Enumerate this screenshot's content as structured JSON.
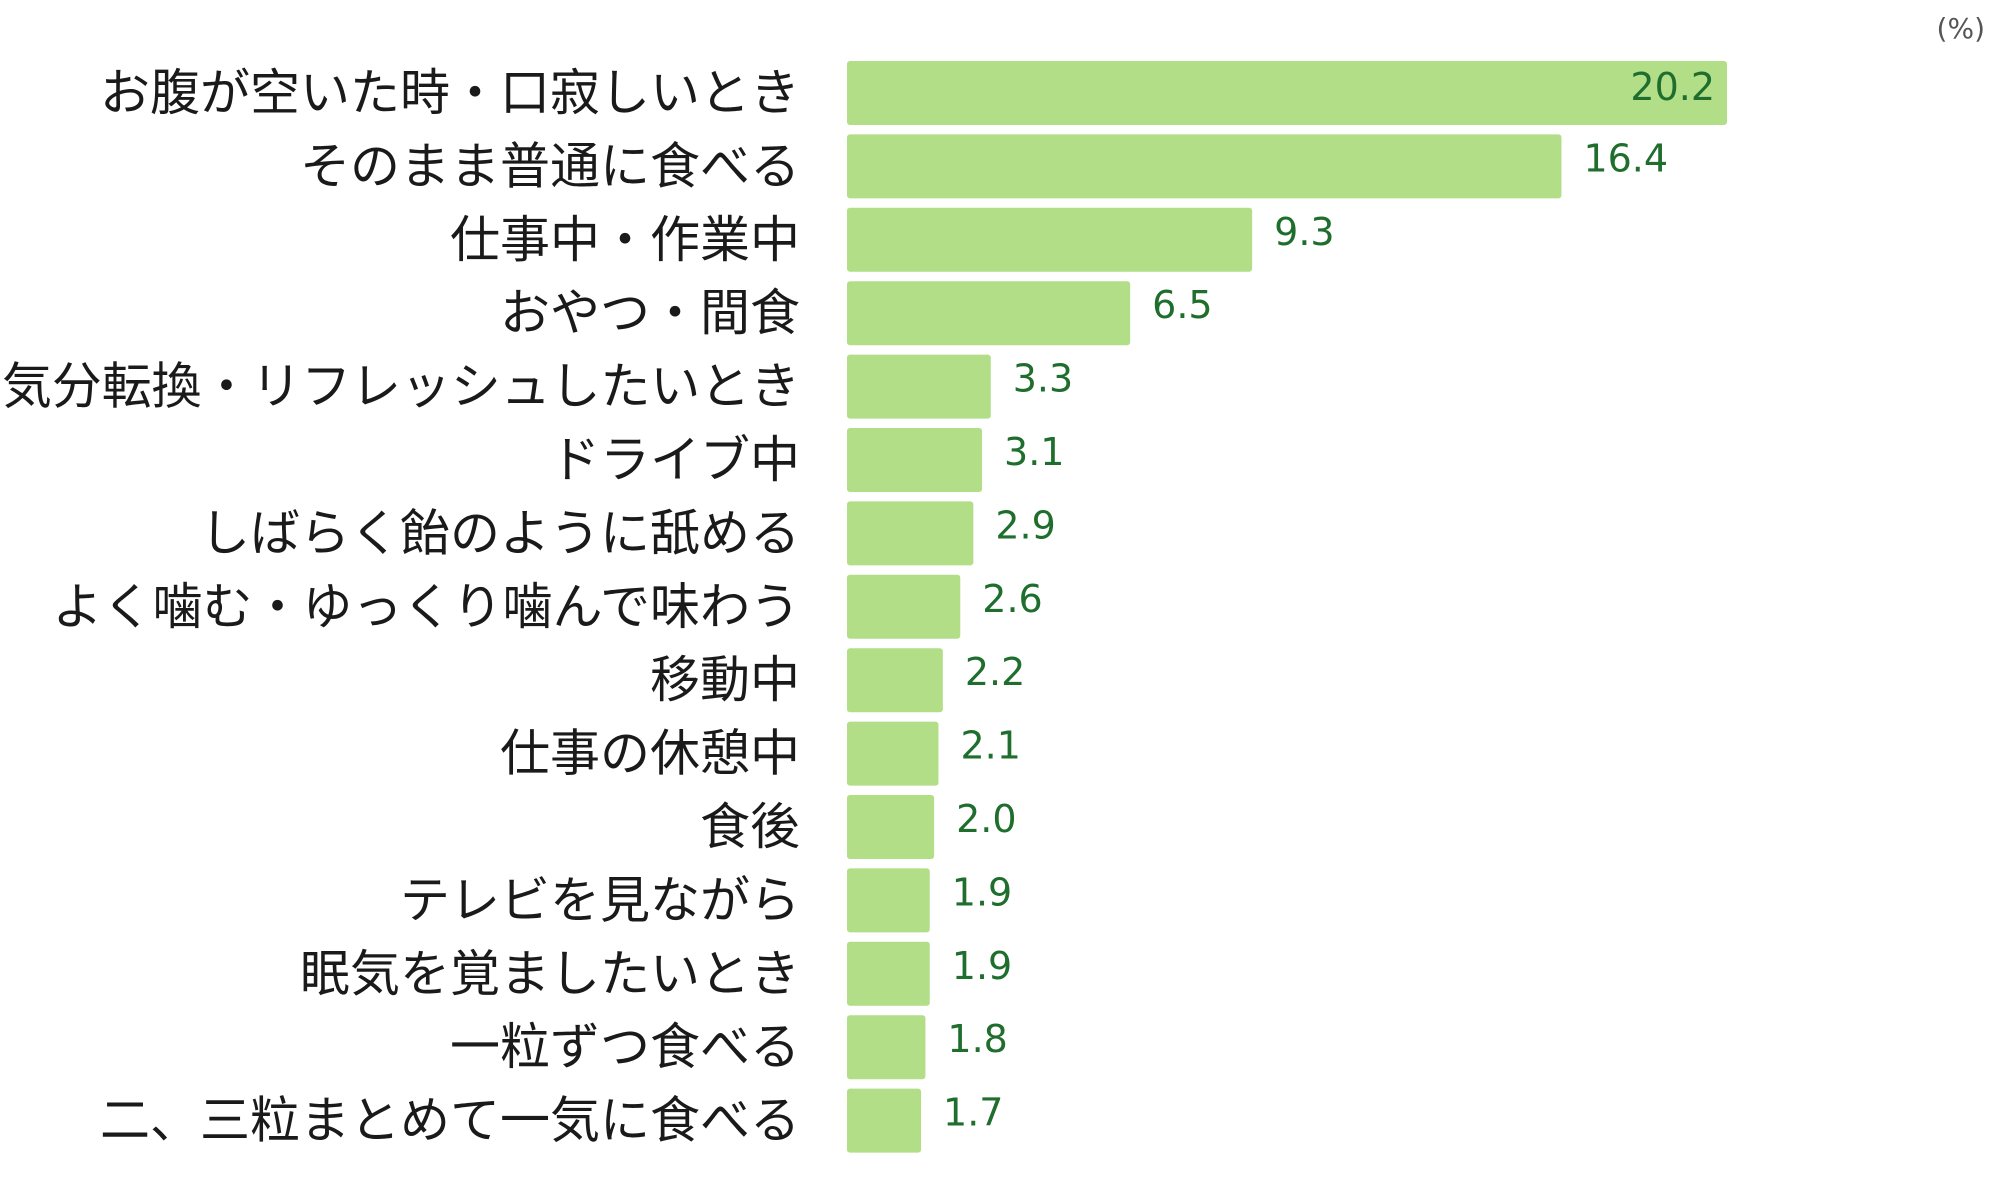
{
  "colors": {
    "bar": "#b1de86",
    "value_text": "#1f6e2d",
    "category_text": "#1a1a1a",
    "unit_text": "#555555"
  },
  "chart_data": {
    "type": "bar",
    "orientation": "horizontal",
    "unit": "(%)",
    "categories": [
      "お腹が空いた時・口寂しいとき",
      "そのまま普通に食べる",
      "仕事中・作業中",
      "おやつ・間食",
      "気分転換・リフレッシュしたいとき",
      "ドライブ中",
      "しばらく飴のように舐める",
      "よく噛む・ゆっくり噛んで味わう",
      "移動中",
      "仕事の休憩中",
      "食後",
      "テレビを見ながら",
      "眠気を覚ましたいとき",
      "一粒ずつ食べる",
      "二、三粒まとめて一気に食べる"
    ],
    "values": [
      20.2,
      16.4,
      9.3,
      6.5,
      3.3,
      3.1,
      2.9,
      2.6,
      2.2,
      2.1,
      2.0,
      1.9,
      1.9,
      1.8,
      1.7
    ],
    "value_labels": [
      "20.2",
      "16.4",
      "9.3",
      "6.5",
      "3.3",
      "3.1",
      "2.9",
      "2.6",
      "2.2",
      "2.1",
      "2.0",
      "1.9",
      "1.9",
      "1.8",
      "1.7"
    ],
    "xlim": [
      0,
      20.2
    ],
    "grid": false,
    "legend": "none"
  }
}
